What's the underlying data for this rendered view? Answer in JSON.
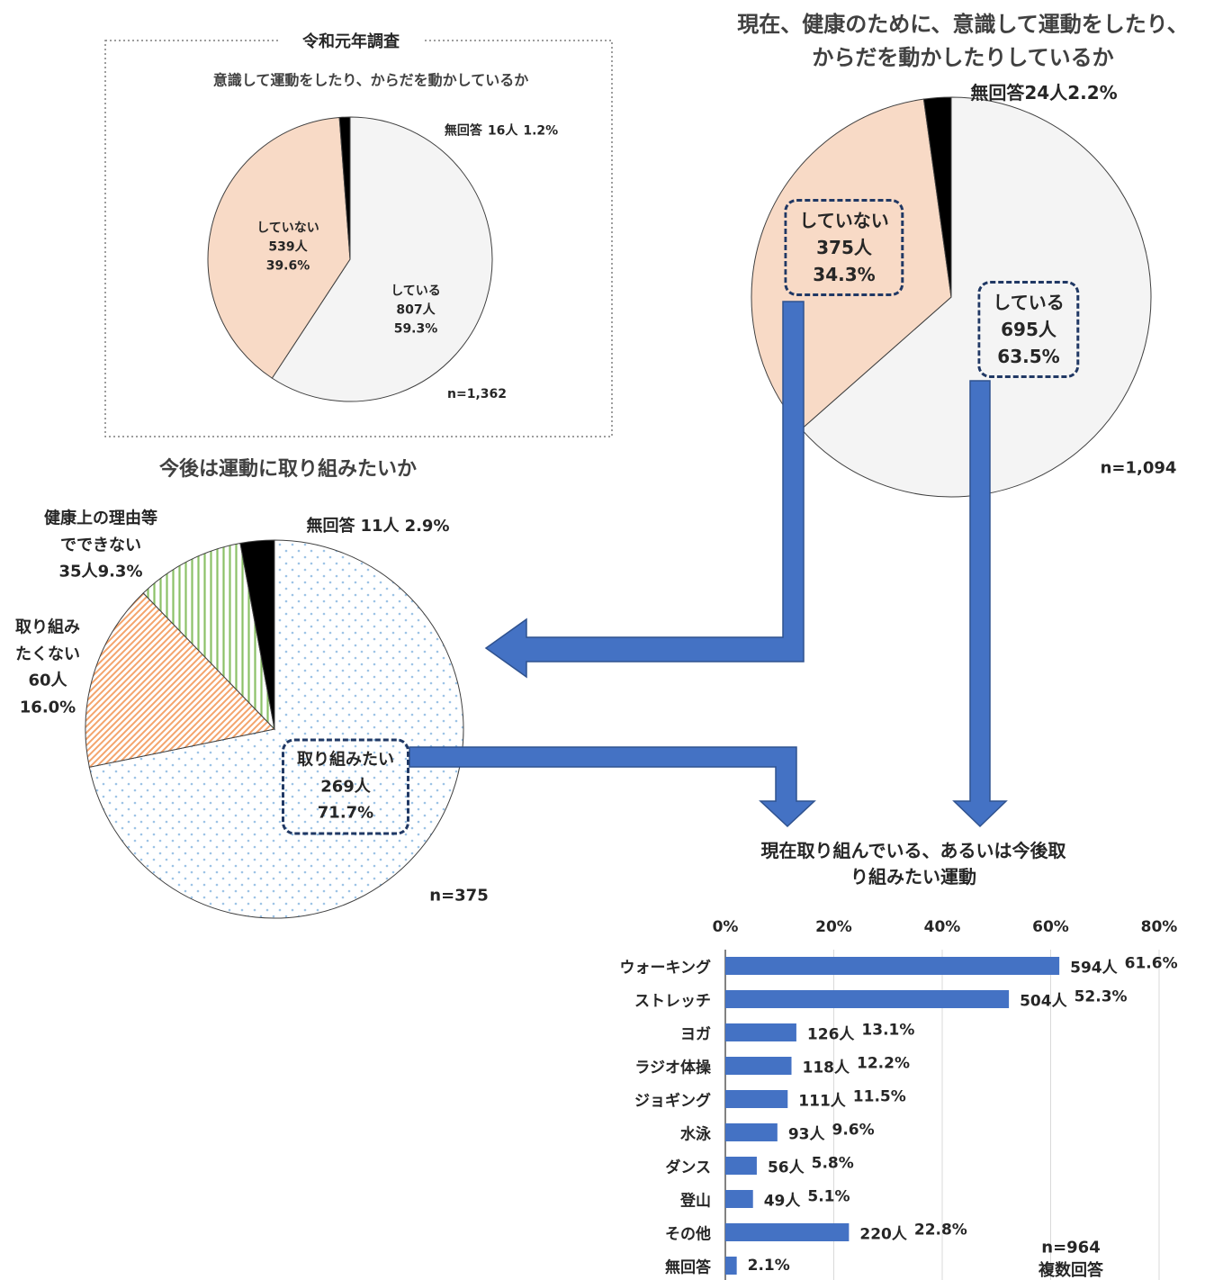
{
  "chart_data": [
    {
      "type": "pie",
      "frame_title": "令和元年調査",
      "title": "意識して運動をしたり、からだを動かしているか",
      "categories": [
        "している",
        "していない",
        "無回答"
      ],
      "values": [
        59.3,
        39.6,
        1.2
      ],
      "value_labels": [
        "59.3%",
        "39.6%",
        "1.2%"
      ],
      "count_labels": [
        "807人",
        "539人",
        "16人"
      ],
      "colors": [
        "#f4f4f4",
        "#f8dac6",
        "#000000"
      ],
      "note": "n=1,362"
    },
    {
      "type": "pie",
      "title": "現在、健康のために、意識して運動をしたり、\nからだを動かしたりしているか",
      "categories": [
        "している",
        "していない",
        "無回答"
      ],
      "values": [
        63.5,
        34.3,
        2.2
      ],
      "value_labels": [
        "63.5%",
        "34.3%",
        "2.2%"
      ],
      "count_labels": [
        "695人",
        "375人",
        "24人"
      ],
      "colors": [
        "#f4f4f4",
        "#f8dac6",
        "#000000"
      ],
      "note": "n=1,094"
    },
    {
      "type": "pie",
      "title": "今後は運動に取り組みたいか",
      "categories": [
        "取り組みたい",
        "取り組み\nたくない",
        "健康上の理由等\nでできない",
        "無回答"
      ],
      "values": [
        71.7,
        16.0,
        9.3,
        2.9
      ],
      "value_labels": [
        "71.7%",
        "16.0%",
        "9.3%",
        "2.9%"
      ],
      "count_labels": [
        "269人",
        "60人",
        "35人",
        "11人"
      ],
      "colors": [
        "#9dc3e6",
        "#f4a46c",
        "#8cc168",
        "#000000"
      ],
      "patterns": [
        "dots",
        "hatch",
        "stripes",
        "solid"
      ],
      "note": "n=375"
    },
    {
      "type": "hbar",
      "title": "現在取り組んでいる、あるいは今後取り組みたい運動",
      "categories": [
        "ウォーキング",
        "ストレッチ",
        "ヨガ",
        "ラジオ体操",
        "ジョギング",
        "水泳",
        "ダンス",
        "登山",
        "その他",
        "無回答"
      ],
      "values": [
        61.6,
        52.3,
        13.1,
        12.2,
        11.5,
        9.6,
        5.8,
        5.1,
        22.8,
        2.1
      ],
      "value_labels": [
        "61.6%",
        "52.3%",
        "13.1%",
        "12.2%",
        "11.5%",
        "9.6%",
        "5.8%",
        "5.1%",
        "22.8%",
        "2.1%"
      ],
      "count_labels": [
        "594人",
        "504人",
        "126人",
        "118人",
        "111人",
        "93人",
        "56人",
        "49人",
        "220人",
        null
      ],
      "color": "#4472c4",
      "xlim": [
        0,
        80
      ],
      "xticks": [
        {
          "value": 0,
          "label": "0%"
        },
        {
          "value": 20,
          "label": "20%"
        },
        {
          "value": 40,
          "label": "40%"
        },
        {
          "value": 60,
          "label": "60%"
        },
        {
          "value": 80,
          "label": "80%"
        }
      ],
      "grid": true,
      "notes": [
        "n=964",
        "複数回答"
      ]
    }
  ]
}
